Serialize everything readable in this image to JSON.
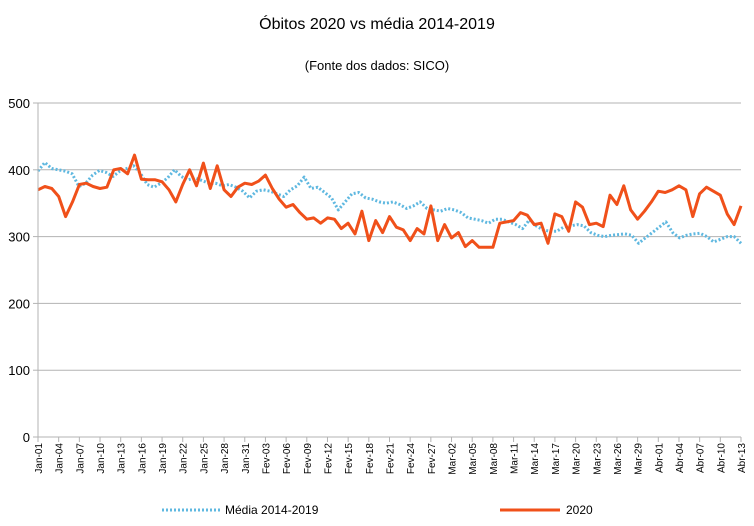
{
  "chart_data": {
    "type": "line",
    "title": "Óbitos 2020 vs média 2014-2019",
    "subtitle": "(Fonte dos dados: SICO)",
    "xlabel": "",
    "ylabel": "",
    "ylim": [
      0,
      500
    ],
    "yticks": [
      "0",
      "100",
      "200",
      "300",
      "400",
      "500"
    ],
    "grid": true,
    "legend_position": "bottom",
    "x_tick_labels": [
      "Jan-01",
      "Jan-04",
      "Jan-07",
      "Jan-10",
      "Jan-13",
      "Jan-16",
      "Jan-19",
      "Jan-22",
      "Jan-25",
      "Jan-28",
      "Jan-31",
      "Fev-03",
      "Fev-06",
      "Fev-09",
      "Fev-12",
      "Fev-15",
      "Fev-18",
      "Fev-21",
      "Fev-24",
      "Fev-27",
      "Mar-02",
      "Mar-05",
      "Mar-08",
      "Mar-11",
      "Mar-14",
      "Mar-17",
      "Mar-20",
      "Mar-23",
      "Mar-26",
      "Mar-29",
      "Abr-01",
      "Abr-04",
      "Abr-07",
      "Abr-10",
      "Abr-13"
    ],
    "series": [
      {
        "name": "Média 2014-2019",
        "color": "#5fb8e0",
        "style": "dotted",
        "values": [
          398,
          411,
          402,
          400,
          398,
          394,
          375,
          380,
          392,
          399,
          396,
          390,
          398,
          402,
          406,
          395,
          378,
          374,
          380,
          388,
          400,
          390,
          385,
          388,
          384,
          380,
          380,
          376,
          378,
          374,
          368,
          358,
          368,
          370,
          368,
          364,
          360,
          370,
          376,
          389,
          372,
          374,
          366,
          358,
          340,
          352,
          364,
          366,
          358,
          356,
          352,
          350,
          352,
          348,
          342,
          346,
          352,
          342,
          340,
          338,
          342,
          340,
          336,
          328,
          326,
          324,
          320,
          326,
          326,
          322,
          318,
          312,
          325,
          316,
          310,
          308,
          308,
          314,
          316,
          318,
          316,
          306,
          302,
          300,
          302,
          303,
          304,
          302,
          290,
          298,
          306,
          314,
          322,
          306,
          298,
          302,
          304,
          305,
          300,
          292,
          296,
          300,
          300,
          290
        ]
      },
      {
        "name": "2020",
        "color": "#f0501a",
        "style": "solid",
        "values": [
          370,
          375,
          372,
          360,
          330,
          352,
          378,
          380,
          375,
          372,
          374,
          400,
          402,
          394,
          422,
          386,
          385,
          385,
          382,
          370,
          352,
          378,
          400,
          376,
          410,
          372,
          406,
          370,
          360,
          374,
          380,
          378,
          383,
          392,
          372,
          356,
          344,
          348,
          336,
          326,
          328,
          320,
          328,
          326,
          312,
          320,
          304,
          338,
          294,
          324,
          306,
          330,
          314,
          310,
          294,
          312,
          304,
          346,
          294,
          318,
          298,
          306,
          285,
          294,
          284,
          284,
          284,
          320,
          322,
          324,
          336,
          332,
          318,
          320,
          290,
          334,
          330,
          308,
          352,
          344,
          318,
          320,
          315,
          362,
          348,
          376,
          340,
          326,
          338,
          352,
          368,
          366,
          370,
          376,
          370,
          330,
          364,
          374,
          368,
          362,
          334,
          318,
          346
        ]
      }
    ]
  }
}
